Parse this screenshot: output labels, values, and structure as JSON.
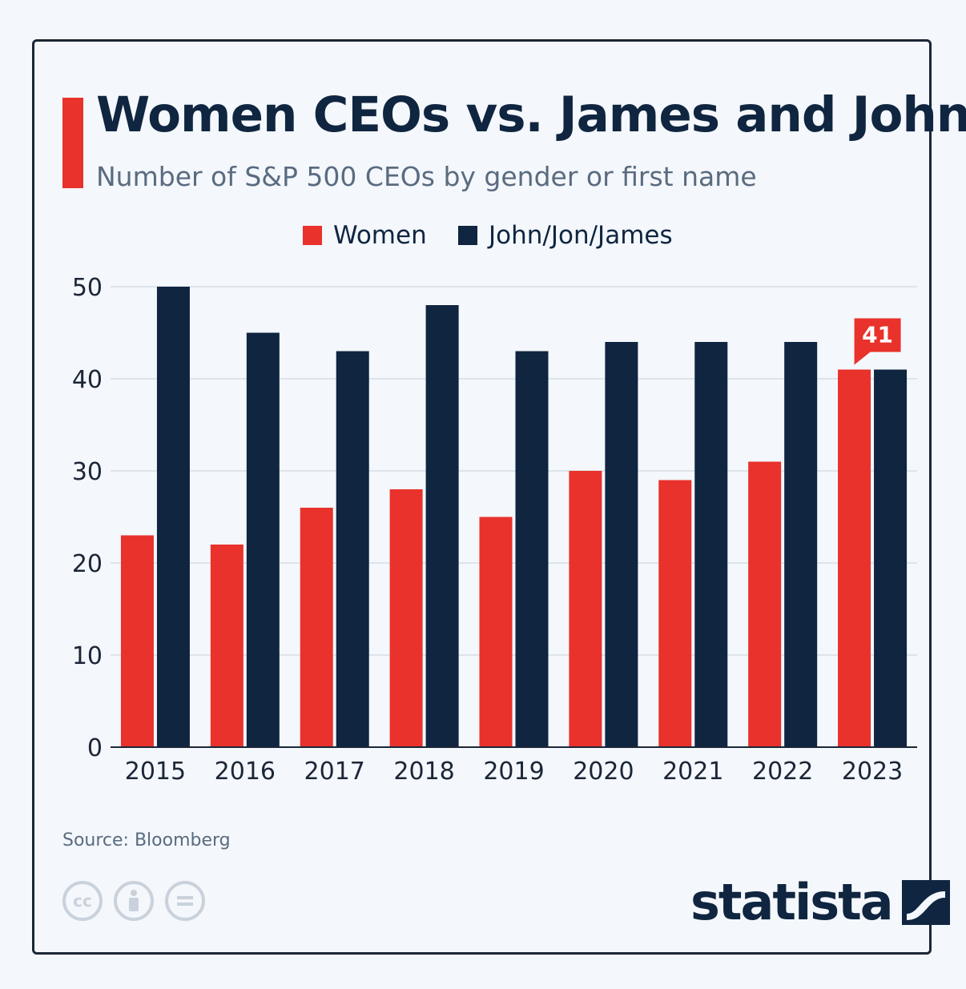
{
  "header": {
    "title": "Women CEOs vs. James and John",
    "subtitle": "Number of S&P 500 CEOs by gender or first name"
  },
  "legend": [
    {
      "label": "Women",
      "color": "#e8322b"
    },
    {
      "label": "John/Jon/James",
      "color": "#0f2540"
    }
  ],
  "chart_data": {
    "type": "bar",
    "title": "Women CEOs vs. James and John",
    "subtitle": "Number of S&P 500 CEOs by gender or first name",
    "categories": [
      "2015",
      "2016",
      "2017",
      "2018",
      "2019",
      "2020",
      "2021",
      "2022",
      "2023"
    ],
    "series": [
      {
        "name": "Women",
        "color": "#e8322b",
        "values": [
          23,
          22,
          26,
          28,
          25,
          30,
          29,
          31,
          41
        ]
      },
      {
        "name": "John/Jon/James",
        "color": "#0f2540",
        "values": [
          50,
          45,
          43,
          48,
          43,
          44,
          44,
          44,
          41
        ]
      }
    ],
    "ylim": [
      0,
      50
    ],
    "yticks": [
      0,
      10,
      20,
      30,
      40,
      50
    ],
    "grid": true,
    "legend_position": "top-center",
    "annotations": [
      {
        "category": "2023",
        "series": "Women",
        "text": "41"
      }
    ]
  },
  "footer": {
    "source": "Source: Bloomberg",
    "license_icons": [
      "cc-icon",
      "attribution-icon",
      "no-derivatives-icon"
    ],
    "brand": "statista"
  }
}
